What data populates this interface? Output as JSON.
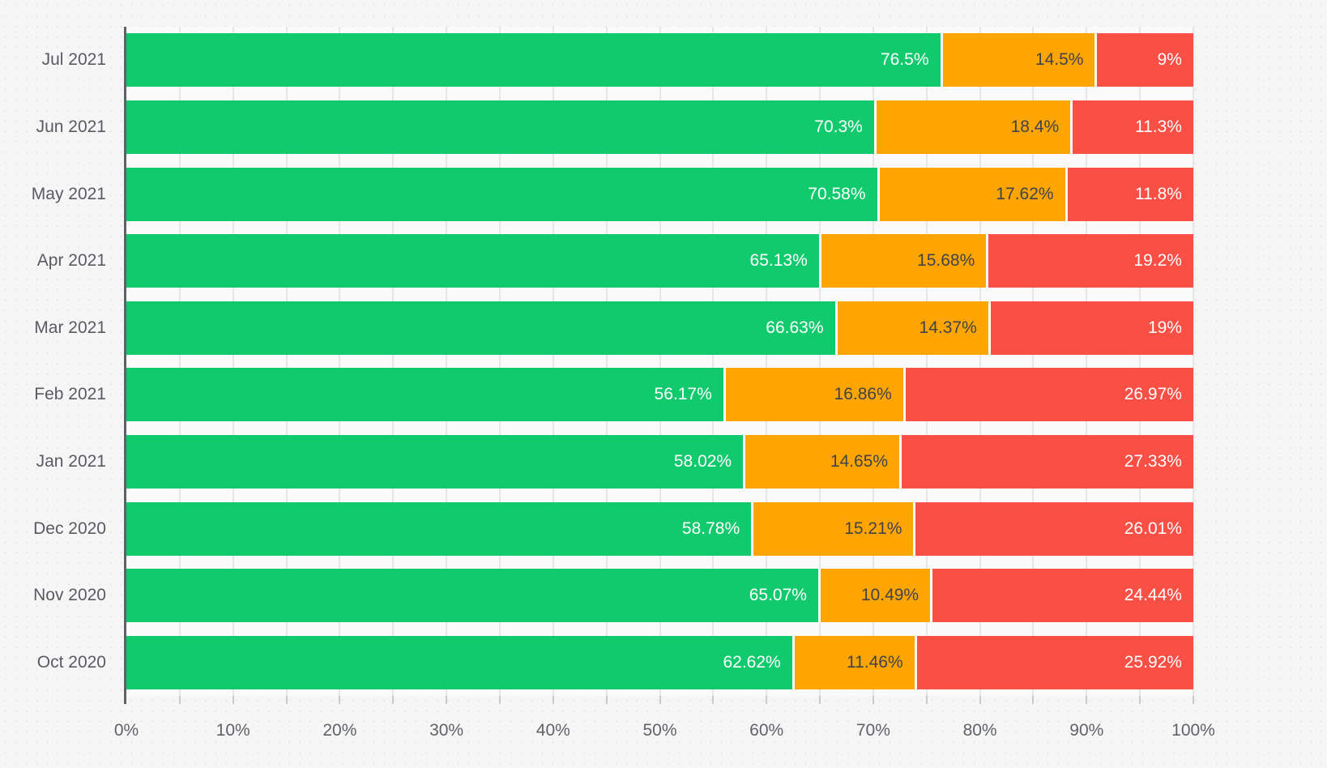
{
  "chart_data": {
    "type": "bar",
    "orientation": "horizontal",
    "stacked": true,
    "unit": "%",
    "title": "",
    "legend": "none",
    "categories": [
      "Jul 2021",
      "Jun 2021",
      "May 2021",
      "Apr 2021",
      "Mar 2021",
      "Feb 2021",
      "Jan 2021",
      "Dec 2020",
      "Nov 2020",
      "Oct 2020"
    ],
    "series": [
      {
        "name": "green-segment",
        "color": "#10CA6D",
        "label_color": "#ffffff",
        "values": [
          76.5,
          70.3,
          70.58,
          65.13,
          66.63,
          56.17,
          58.02,
          58.78,
          65.07,
          62.62
        ],
        "labels": [
          "76.5%",
          "70.3%",
          "70.58%",
          "65.13%",
          "66.63%",
          "56.17%",
          "58.02%",
          "58.78%",
          "65.07%",
          "62.62%"
        ]
      },
      {
        "name": "orange-segment",
        "color": "#FFA502",
        "label_color": "#3f434a",
        "values": [
          14.5,
          18.4,
          17.62,
          15.68,
          14.37,
          16.86,
          14.65,
          15.21,
          10.49,
          11.46
        ],
        "labels": [
          "14.5%",
          "18.4%",
          "17.62%",
          "15.68%",
          "14.37%",
          "16.86%",
          "14.65%",
          "15.21%",
          "10.49%",
          "11.46%"
        ]
      },
      {
        "name": "red-segment",
        "color": "#F94F44",
        "label_color": "#ffffff",
        "values": [
          9,
          11.3,
          11.8,
          19.2,
          19,
          26.97,
          27.33,
          26.01,
          24.44,
          25.92
        ],
        "labels": [
          "9%",
          "11.3%",
          "11.8%",
          "19.2%",
          "19%",
          "26.97%",
          "27.33%",
          "26.01%",
          "24.44%",
          "25.92%"
        ]
      }
    ],
    "x_axis": {
      "min": 0,
      "max": 100,
      "major_tick_step": 10,
      "minor_tick_step": 5,
      "tick_labels": [
        "0%",
        "10%",
        "20%",
        "30%",
        "40%",
        "50%",
        "60%",
        "70%",
        "80%",
        "90%",
        "100%"
      ]
    },
    "grid": {
      "vertical": true,
      "step_percent": 5,
      "horizontal": false
    }
  }
}
